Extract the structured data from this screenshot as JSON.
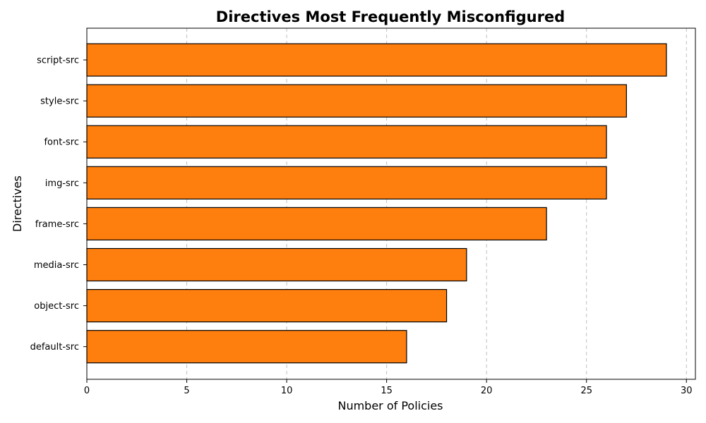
{
  "chart_data": {
    "type": "bar",
    "orientation": "horizontal",
    "title": "Directives Most Frequently Misconfigured",
    "xlabel": "Number of Policies",
    "ylabel": "Directives",
    "categories": [
      "default-src",
      "object-src",
      "media-src",
      "frame-src",
      "img-src",
      "font-src",
      "style-src",
      "script-src"
    ],
    "values": [
      16,
      18,
      19,
      23,
      26,
      26,
      27,
      29
    ],
    "xlim": [
      0,
      30.45
    ],
    "xticks": [
      0,
      5,
      10,
      15,
      20,
      25,
      30
    ],
    "grid": "x-dashed",
    "bar_color": "#ff7f0e",
    "edge_color": "#000000"
  }
}
